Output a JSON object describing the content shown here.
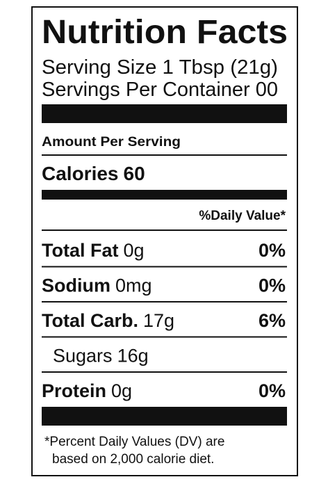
{
  "header": {
    "title": "Nutrition Facts",
    "serving_size": "Serving Size 1 Tbsp (21g)",
    "servings_per_container": "Servings Per Container 00"
  },
  "amount_per_serving": "Amount Per Serving",
  "calories": {
    "label": "Calories",
    "value": "60"
  },
  "daily_value_header": "%Daily Value*",
  "nutrients": [
    {
      "name": "Total Fat",
      "amount": "0g",
      "dv": "0%"
    },
    {
      "name": "Sodium",
      "amount": "0mg",
      "dv": "0%"
    },
    {
      "name": "Total Carb.",
      "amount": "17g",
      "dv": "6%"
    },
    {
      "name": "Sugars",
      "amount": "16g"
    },
    {
      "name": "Protein",
      "amount": "0g",
      "dv": "0%"
    }
  ],
  "footnote": [
    "*Percent Daily Values (DV) are",
    "based on 2,000 calorie diet."
  ]
}
